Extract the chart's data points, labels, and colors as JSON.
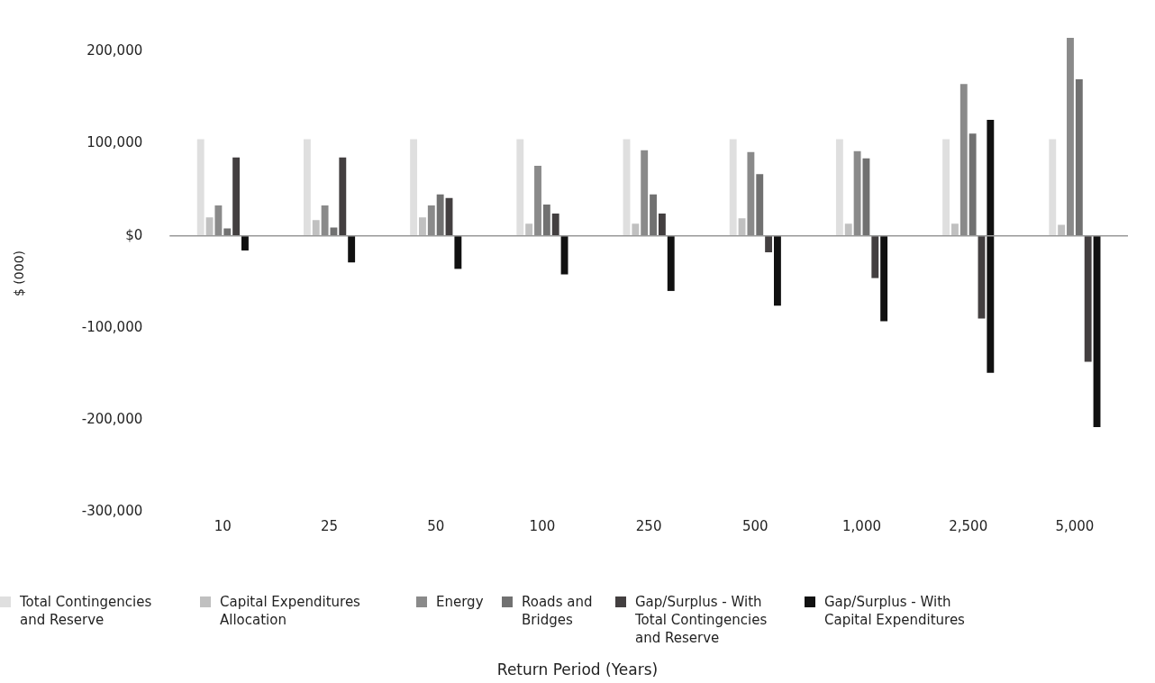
{
  "chart_data": {
    "type": "bar",
    "annotations": [
      "Return Period (Years)"
    ],
    "ylabel": "$ (000)",
    "categories": [
      "10",
      "25",
      "50",
      "100",
      "250",
      "500",
      "1,000",
      "2,500",
      "5,000"
    ],
    "series": [
      {
        "name": "Total Contingencies and Reserve",
        "color": "#dfdfdf",
        "values": [
          105000,
          105000,
          105000,
          105000,
          105000,
          105000,
          105000,
          105000,
          105000
        ]
      },
      {
        "name": "Capital Expenditures Allocation",
        "color": "#c0c0c0",
        "values": [
          20000,
          17000,
          20000,
          13000,
          13000,
          19000,
          13000,
          13000,
          12000
        ]
      },
      {
        "name": "Energy",
        "color": "#8a8a8a",
        "values": [
          33000,
          33000,
          33000,
          76000,
          93000,
          91000,
          92000,
          165000,
          215000
        ]
      },
      {
        "name": "Roads and Bridges",
        "color": "#717171",
        "values": [
          8000,
          9000,
          45000,
          34000,
          45000,
          67000,
          84000,
          111000,
          170000
        ]
      },
      {
        "name": "Gap/Surplus - With Total Contingencies and Reserve",
        "color": "#433f40",
        "values": [
          85000,
          85000,
          41000,
          24000,
          24000,
          -18000,
          -46000,
          -90000,
          -137000
        ]
      },
      {
        "name": "Gap/Surplus - With Capital Expenditures",
        "color": "#111111",
        "values": [
          -16000,
          -29000,
          -36000,
          -42000,
          -60000,
          -76000,
          -93000,
          -275000,
          -208000
        ],
        "base": [
          null,
          null,
          null,
          null,
          null,
          null,
          null,
          126000,
          null
        ]
      }
    ],
    "ylim": [
      -300000,
      218000
    ],
    "yticks": [
      {
        "value": -300000,
        "label": "-300,000"
      },
      {
        "value": -200000,
        "label": "-200,000"
      },
      {
        "value": -100000,
        "label": "-100,000"
      },
      {
        "value": 0,
        "label": "$0"
      },
      {
        "value": 100000,
        "label": "100,000"
      },
      {
        "value": 200000,
        "label": "200,000"
      }
    ],
    "ref_lines": [
      {
        "axis": "y",
        "value": 0,
        "color": "#999999"
      }
    ],
    "grid": false,
    "legend": "bottom"
  }
}
